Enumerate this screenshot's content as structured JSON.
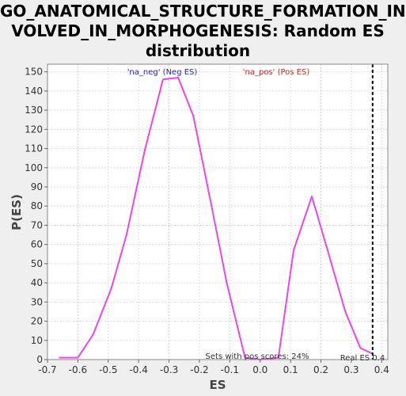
{
  "chart_data": {
    "type": "line",
    "title_lines": [
      "GO_ANATOMICAL_STRUCTURE_FORMATION_IN",
      "VOLVED_IN_MORPHOGENESIS: Random ES",
      "distribution"
    ],
    "xlabel": "ES",
    "ylabel": "P(ES)",
    "xlim": [
      -0.7,
      0.42
    ],
    "ylim": [
      0,
      154
    ],
    "xticks": [
      -0.7,
      -0.6,
      -0.5,
      -0.4,
      -0.3,
      -0.2,
      -0.1,
      0.0,
      0.1,
      0.2,
      0.3,
      0.4
    ],
    "xtick_labels": [
      "-0.7",
      "-0.6",
      "-0.5",
      "-0.4",
      "-0.3",
      "-0.2",
      "-0.1",
      "0.0",
      "0.1",
      "0.2",
      "0.3",
      "0.4"
    ],
    "yticks": [
      0,
      10,
      20,
      30,
      40,
      50,
      60,
      70,
      80,
      90,
      100,
      110,
      120,
      130,
      140,
      150
    ],
    "ytick_labels": [
      "0",
      "10",
      "20",
      "30",
      "40",
      "50",
      "60",
      "70",
      "80",
      "90",
      "100",
      "110",
      "120",
      "130",
      "140",
      "150"
    ],
    "grid": true,
    "series": [
      {
        "color": "#ee44ee",
        "x": [
          -0.66,
          -0.6,
          -0.55,
          -0.49,
          -0.44,
          -0.38,
          -0.32,
          -0.27,
          -0.22,
          -0.16,
          -0.11,
          -0.05,
          0.0,
          0.06,
          0.11,
          0.17,
          0.22,
          0.28,
          0.33,
          0.37
        ],
        "y": [
          1,
          1,
          13,
          37,
          65,
          109,
          146,
          147,
          127,
          80,
          40,
          1,
          0,
          1,
          57,
          85,
          58,
          25,
          6,
          3
        ]
      }
    ],
    "real_es": {
      "x": 0.37,
      "label": "Real ES 0.4",
      "color": "#000000"
    },
    "annotations": {
      "neg": {
        "text": "'na_neg' (Neg ES)",
        "color": "#2222cc"
      },
      "pos": {
        "text": "'na_pos' (Pos ES)",
        "color": "#cc2222"
      },
      "sets": {
        "text": "Sets with pos scores: 24%",
        "color": "#333333"
      }
    }
  }
}
